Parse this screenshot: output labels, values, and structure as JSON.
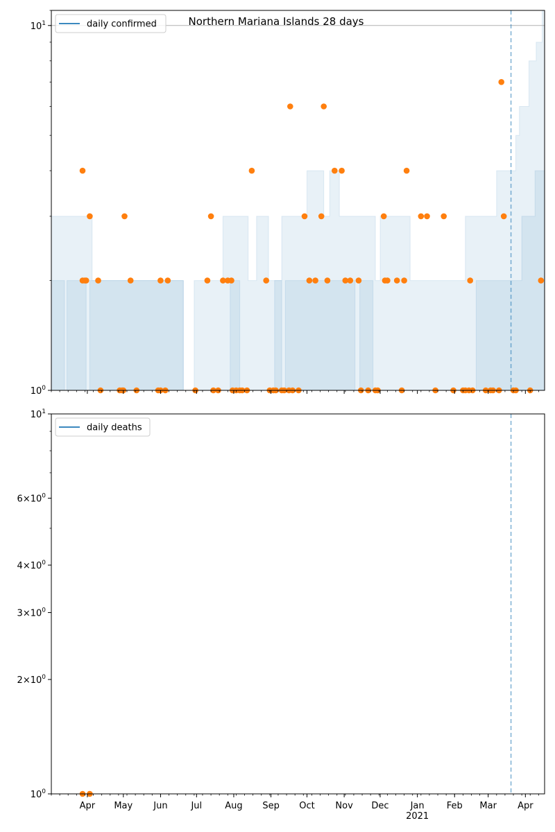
{
  "chart_data": [
    {
      "type": "scatter",
      "title": "Northern Mariana Islands 28 days",
      "legend": {
        "entries": [
          "daily confirmed"
        ],
        "placement": "top-left"
      },
      "xlabel": "",
      "ylabel": "",
      "yscale": "log",
      "ylim": [
        1,
        11
      ],
      "yticks": [
        {
          "value": 1,
          "label": "10^0"
        },
        {
          "value": 10,
          "label": "10^1"
        }
      ],
      "ref_hline": 10,
      "vline_date": "2021-03-20",
      "series": [
        {
          "name": "daily confirmed",
          "kind": "points",
          "color": "#ff7f0e",
          "points": [
            [
              "2020-03-28",
              4
            ],
            [
              "2020-03-28",
              2
            ],
            [
              "2020-03-30",
              2
            ],
            [
              "2020-03-31",
              2
            ],
            [
              "2020-04-03",
              3
            ],
            [
              "2020-04-10",
              2
            ],
            [
              "2020-04-12",
              1
            ],
            [
              "2020-04-28",
              1
            ],
            [
              "2020-04-30",
              1
            ],
            [
              "2020-05-01",
              1
            ],
            [
              "2020-05-02",
              3
            ],
            [
              "2020-05-07",
              2
            ],
            [
              "2020-05-12",
              1
            ],
            [
              "2020-05-30",
              1
            ],
            [
              "2020-06-01",
              1
            ],
            [
              "2020-06-01",
              2
            ],
            [
              "2020-06-05",
              1
            ],
            [
              "2020-06-07",
              2
            ],
            [
              "2020-06-30",
              1
            ],
            [
              "2020-07-10",
              2
            ],
            [
              "2020-07-13",
              3
            ],
            [
              "2020-07-15",
              1
            ],
            [
              "2020-07-19",
              1
            ],
            [
              "2020-07-23",
              2
            ],
            [
              "2020-07-27",
              2
            ],
            [
              "2020-07-30",
              2
            ],
            [
              "2020-07-31",
              1
            ],
            [
              "2020-08-03",
              1
            ],
            [
              "2020-08-06",
              1
            ],
            [
              "2020-08-08",
              1
            ],
            [
              "2020-08-12",
              1
            ],
            [
              "2020-08-16",
              4
            ],
            [
              "2020-08-28",
              2
            ],
            [
              "2020-08-31",
              1
            ],
            [
              "2020-09-03",
              1
            ],
            [
              "2020-09-05",
              1
            ],
            [
              "2020-09-10",
              1
            ],
            [
              "2020-09-12",
              1
            ],
            [
              "2020-09-16",
              1
            ],
            [
              "2020-09-17",
              6
            ],
            [
              "2020-09-19",
              1
            ],
            [
              "2020-09-24",
              1
            ],
            [
              "2020-09-29",
              3
            ],
            [
              "2020-10-03",
              2
            ],
            [
              "2020-10-08",
              2
            ],
            [
              "2020-10-13",
              3
            ],
            [
              "2020-10-15",
              6
            ],
            [
              "2020-10-18",
              2
            ],
            [
              "2020-10-24",
              4
            ],
            [
              "2020-10-30",
              4
            ],
            [
              "2020-11-02",
              2
            ],
            [
              "2020-11-06",
              2
            ],
            [
              "2020-11-13",
              2
            ],
            [
              "2020-11-15",
              1
            ],
            [
              "2020-11-21",
              1
            ],
            [
              "2020-11-27",
              1
            ],
            [
              "2020-11-29",
              1
            ],
            [
              "2020-12-04",
              3
            ],
            [
              "2020-12-05",
              2
            ],
            [
              "2020-12-07",
              2
            ],
            [
              "2020-12-15",
              2
            ],
            [
              "2020-12-19",
              1
            ],
            [
              "2020-12-21",
              2
            ],
            [
              "2020-12-23",
              4
            ],
            [
              "2021-01-04",
              3
            ],
            [
              "2021-01-09",
              3
            ],
            [
              "2021-01-16",
              1
            ],
            [
              "2021-01-23",
              3
            ],
            [
              "2021-01-31",
              1
            ],
            [
              "2021-02-08",
              1
            ],
            [
              "2021-02-10",
              1
            ],
            [
              "2021-02-13",
              1
            ],
            [
              "2021-02-14",
              2
            ],
            [
              "2021-02-16",
              1
            ],
            [
              "2021-02-27",
              1
            ],
            [
              "2021-03-03",
              1
            ],
            [
              "2021-03-05",
              1
            ],
            [
              "2021-03-10",
              1
            ],
            [
              "2021-03-12",
              7
            ],
            [
              "2021-03-14",
              3
            ],
            [
              "2021-03-22",
              1
            ],
            [
              "2021-03-24",
              1
            ],
            [
              "2021-04-05",
              1
            ],
            [
              "2021-04-14",
              2
            ]
          ]
        }
      ],
      "bands": [
        {
          "name": "",
          "color": "#1f77b4",
          "opacity": 0.1,
          "low": 1,
          "steps": [
            [
              "2020-03-01",
              3
            ],
            [
              "2020-04-05",
              2
            ],
            [
              "2020-06-20",
              1
            ],
            [
              "2020-06-29",
              2
            ],
            [
              "2020-07-23",
              3
            ],
            [
              "2020-08-13",
              2
            ],
            [
              "2020-08-20",
              3
            ],
            [
              "2020-08-30",
              2
            ],
            [
              "2020-09-10",
              3
            ],
            [
              "2020-10-01",
              4
            ],
            [
              "2020-10-15",
              3
            ],
            [
              "2020-10-20",
              4
            ],
            [
              "2020-10-28",
              3
            ],
            [
              "2020-11-27",
              2
            ],
            [
              "2020-12-01",
              3
            ],
            [
              "2020-12-26",
              2
            ],
            [
              "2021-02-10",
              3
            ],
            [
              "2021-03-08",
              4
            ],
            [
              "2021-03-24",
              5
            ],
            [
              "2021-03-27",
              6
            ],
            [
              "2021-04-04",
              8
            ],
            [
              "2021-04-10",
              9
            ],
            [
              "2021-04-15",
              11
            ],
            [
              "2021-04-17",
              11
            ]
          ]
        },
        {
          "name": "",
          "color": "#1f77b4",
          "opacity": 0.1,
          "low": 1,
          "steps": [
            [
              "2020-03-01",
              2
            ],
            [
              "2020-03-13",
              1
            ],
            [
              "2020-03-15",
              2
            ],
            [
              "2020-03-31",
              1
            ],
            [
              "2020-04-02",
              1
            ],
            [
              "2020-04-03",
              2
            ],
            [
              "2020-06-20",
              1
            ],
            [
              "2020-07-29",
              2
            ],
            [
              "2020-08-06",
              1
            ],
            [
              "2020-09-04",
              2
            ],
            [
              "2020-09-10",
              1
            ],
            [
              "2020-09-13",
              2
            ],
            [
              "2020-11-10",
              1
            ],
            [
              "2020-11-14",
              2
            ],
            [
              "2020-11-25",
              1
            ],
            [
              "2020-12-25",
              1
            ],
            [
              "2021-02-19",
              2
            ],
            [
              "2021-03-29",
              3
            ],
            [
              "2021-04-09",
              4
            ],
            [
              "2021-04-17",
              4
            ]
          ]
        }
      ]
    },
    {
      "type": "scatter",
      "title": "",
      "legend": {
        "entries": [
          "daily deaths"
        ],
        "placement": "top-left"
      },
      "xlabel": "",
      "ylabel": "",
      "yscale": "log",
      "ylim": [
        1,
        10
      ],
      "yticks": [
        {
          "value": 1,
          "label": "10^0"
        },
        {
          "value": 2,
          "label": "2×10^0"
        },
        {
          "value": 3,
          "label": "3×10^0"
        },
        {
          "value": 4,
          "label": "4×10^0"
        },
        {
          "value": 6,
          "label": "6×10^0"
        },
        {
          "value": 10,
          "label": "10^1"
        }
      ],
      "vline_date": "2021-03-20",
      "series": [
        {
          "name": "daily deaths",
          "kind": "points",
          "color": "#ff7f0e",
          "points": [
            [
              "2020-03-28",
              1
            ],
            [
              "2020-04-03",
              1
            ]
          ]
        }
      ],
      "bands": []
    }
  ],
  "x_axis": {
    "start": "2020-03-02",
    "end": "2021-04-17",
    "ticks": [
      {
        "date": "2020-04-01",
        "label": "Apr"
      },
      {
        "date": "2020-05-01",
        "label": "May"
      },
      {
        "date": "2020-06-01",
        "label": "Jun"
      },
      {
        "date": "2020-07-01",
        "label": "Jul"
      },
      {
        "date": "2020-08-01",
        "label": "Aug"
      },
      {
        "date": "2020-09-01",
        "label": "Sep"
      },
      {
        "date": "2020-10-01",
        "label": "Oct"
      },
      {
        "date": "2020-11-01",
        "label": "Nov"
      },
      {
        "date": "2020-12-01",
        "label": "Dec"
      },
      {
        "date": "2021-01-01",
        "label": "Jan\n2021"
      },
      {
        "date": "2021-02-01",
        "label": "Feb"
      },
      {
        "date": "2021-03-01",
        "label": "Mar"
      },
      {
        "date": "2021-04-01",
        "label": "Apr"
      }
    ]
  }
}
